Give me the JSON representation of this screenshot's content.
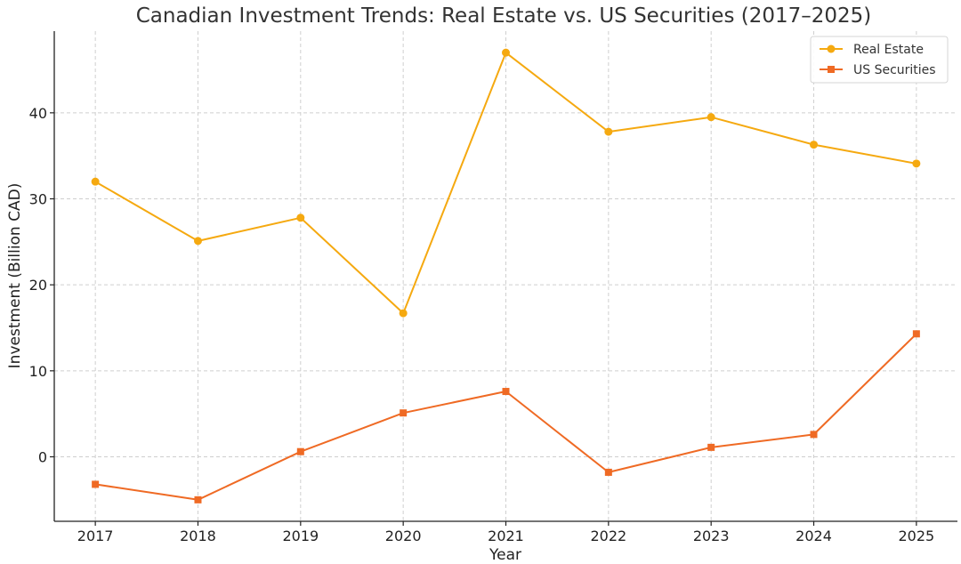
{
  "chart_data": {
    "type": "line",
    "title": "Canadian Investment Trends: Real Estate vs. US Securities (2017–2025)",
    "xlabel": "Year",
    "ylabel": "Investment (Billion CAD)",
    "x": [
      "2017",
      "2018",
      "2019",
      "2020",
      "2021",
      "2022",
      "2023",
      "2024",
      "2025"
    ],
    "x_ticks": [
      "2017",
      "2018",
      "2019",
      "2020",
      "2021",
      "2022",
      "2023",
      "2024",
      "2025"
    ],
    "y_ticks": [
      "0",
      "10",
      "20",
      "30",
      "40"
    ],
    "y_tick_values": [
      0,
      10,
      20,
      30,
      40
    ],
    "xlim": [
      2016.6,
      2025.4
    ],
    "ylim": [
      -7.5,
      49.5
    ],
    "grid": true,
    "legend_position": "top-right",
    "series": [
      {
        "name": "Real Estate",
        "marker": "circle",
        "color": "#f5a910",
        "values": [
          32.0,
          25.1,
          27.8,
          16.7,
          47.0,
          37.8,
          39.5,
          36.3,
          34.1
        ]
      },
      {
        "name": "US Securities",
        "marker": "square",
        "color": "#ef6a24",
        "values": [
          -3.2,
          -5.0,
          0.6,
          5.1,
          7.6,
          -1.8,
          1.1,
          2.6,
          14.3
        ]
      }
    ]
  }
}
